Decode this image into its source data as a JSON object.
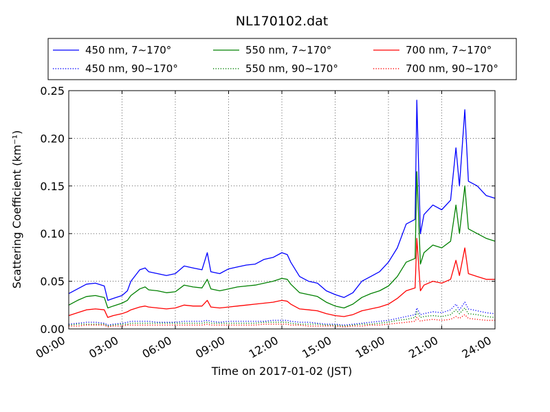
{
  "chart_data": {
    "type": "line",
    "title": "NL170102.dat",
    "xlabel": "Time on 2017-01-02 (JST)",
    "ylabel": "Scattering Coefficient (km⁻¹)",
    "xlim": [
      0,
      24
    ],
    "ylim": [
      0,
      0.25
    ],
    "x_ticks": [
      0,
      3,
      6,
      9,
      12,
      15,
      18,
      21,
      24
    ],
    "x_tick_labels": [
      "00:00",
      "03:00",
      "06:00",
      "09:00",
      "12:00",
      "15:00",
      "18:00",
      "21:00",
      "24:00"
    ],
    "y_ticks": [
      0,
      0.05,
      0.1,
      0.15,
      0.2,
      0.25
    ],
    "y_tick_labels": [
      "0.00",
      "0.05",
      "0.10",
      "0.15",
      "0.20",
      "0.25"
    ],
    "grid": true,
    "legend_position": "top",
    "x": [
      0,
      0.5,
      1.0,
      1.5,
      2.0,
      2.2,
      2.5,
      3.0,
      3.3,
      3.5,
      4.0,
      4.3,
      4.5,
      5.0,
      5.5,
      6.0,
      6.5,
      7.0,
      7.5,
      7.8,
      8.0,
      8.5,
      9.0,
      9.5,
      10.0,
      10.5,
      11.0,
      11.5,
      12.0,
      12.3,
      12.5,
      13.0,
      13.5,
      14.0,
      14.5,
      15.0,
      15.5,
      16.0,
      16.5,
      17.0,
      17.5,
      18.0,
      18.5,
      19.0,
      19.5,
      19.6,
      19.8,
      20.0,
      20.5,
      21.0,
      21.5,
      21.8,
      22.0,
      22.3,
      22.5,
      23.0,
      23.5,
      24.0
    ],
    "series": [
      {
        "name": "450 nm, 7∼170°",
        "color": "#0000ff",
        "style": "solid",
        "values": [
          0.037,
          0.042,
          0.047,
          0.048,
          0.045,
          0.03,
          0.032,
          0.035,
          0.04,
          0.05,
          0.062,
          0.064,
          0.06,
          0.058,
          0.056,
          0.058,
          0.066,
          0.064,
          0.062,
          0.08,
          0.06,
          0.058,
          0.063,
          0.065,
          0.067,
          0.068,
          0.073,
          0.075,
          0.08,
          0.078,
          0.07,
          0.055,
          0.05,
          0.048,
          0.04,
          0.036,
          0.033,
          0.038,
          0.05,
          0.055,
          0.06,
          0.07,
          0.085,
          0.11,
          0.115,
          0.24,
          0.1,
          0.12,
          0.13,
          0.125,
          0.135,
          0.19,
          0.15,
          0.23,
          0.155,
          0.15,
          0.14,
          0.137
        ]
      },
      {
        "name": "550 nm, 7∼170°",
        "color": "#008000",
        "style": "solid",
        "values": [
          0.025,
          0.03,
          0.034,
          0.035,
          0.033,
          0.022,
          0.024,
          0.027,
          0.03,
          0.035,
          0.042,
          0.044,
          0.041,
          0.04,
          0.038,
          0.039,
          0.046,
          0.044,
          0.043,
          0.052,
          0.042,
          0.04,
          0.042,
          0.044,
          0.045,
          0.046,
          0.048,
          0.05,
          0.053,
          0.052,
          0.047,
          0.038,
          0.036,
          0.034,
          0.028,
          0.024,
          0.022,
          0.026,
          0.033,
          0.037,
          0.04,
          0.045,
          0.055,
          0.07,
          0.074,
          0.165,
          0.068,
          0.08,
          0.088,
          0.085,
          0.092,
          0.13,
          0.1,
          0.15,
          0.105,
          0.1,
          0.095,
          0.092
        ]
      },
      {
        "name": "700 nm, 7∼170°",
        "color": "#ff0000",
        "style": "solid",
        "values": [
          0.014,
          0.017,
          0.02,
          0.021,
          0.02,
          0.012,
          0.014,
          0.016,
          0.018,
          0.02,
          0.023,
          0.024,
          0.023,
          0.022,
          0.021,
          0.022,
          0.025,
          0.024,
          0.024,
          0.03,
          0.023,
          0.022,
          0.023,
          0.024,
          0.025,
          0.026,
          0.027,
          0.028,
          0.03,
          0.029,
          0.026,
          0.021,
          0.02,
          0.019,
          0.016,
          0.014,
          0.013,
          0.015,
          0.019,
          0.021,
          0.023,
          0.026,
          0.032,
          0.04,
          0.043,
          0.095,
          0.04,
          0.046,
          0.05,
          0.048,
          0.052,
          0.072,
          0.056,
          0.085,
          0.058,
          0.055,
          0.052,
          0.052
        ]
      },
      {
        "name": "450 nm, 90∼170°",
        "color": "#0000ff",
        "style": "dotted",
        "values": [
          0.005,
          0.006,
          0.007,
          0.007,
          0.006,
          0.004,
          0.005,
          0.006,
          0.007,
          0.008,
          0.008,
          0.008,
          0.008,
          0.007,
          0.007,
          0.007,
          0.008,
          0.008,
          0.008,
          0.009,
          0.008,
          0.007,
          0.008,
          0.008,
          0.008,
          0.008,
          0.008,
          0.009,
          0.009,
          0.009,
          0.008,
          0.007,
          0.007,
          0.006,
          0.005,
          0.005,
          0.004,
          0.005,
          0.006,
          0.007,
          0.008,
          0.009,
          0.011,
          0.013,
          0.015,
          0.022,
          0.015,
          0.016,
          0.018,
          0.017,
          0.02,
          0.026,
          0.02,
          0.028,
          0.021,
          0.019,
          0.017,
          0.016
        ]
      },
      {
        "name": "550 nm, 90∼170°",
        "color": "#008000",
        "style": "dotted",
        "values": [
          0.004,
          0.005,
          0.005,
          0.005,
          0.005,
          0.003,
          0.004,
          0.005,
          0.005,
          0.006,
          0.006,
          0.006,
          0.006,
          0.006,
          0.006,
          0.006,
          0.006,
          0.006,
          0.006,
          0.007,
          0.006,
          0.006,
          0.006,
          0.006,
          0.006,
          0.006,
          0.007,
          0.007,
          0.007,
          0.007,
          0.006,
          0.005,
          0.005,
          0.005,
          0.004,
          0.004,
          0.003,
          0.004,
          0.005,
          0.005,
          0.006,
          0.007,
          0.009,
          0.01,
          0.012,
          0.018,
          0.012,
          0.013,
          0.014,
          0.013,
          0.015,
          0.02,
          0.016,
          0.022,
          0.016,
          0.015,
          0.013,
          0.012
        ]
      },
      {
        "name": "700 nm, 90∼170°",
        "color": "#ff0000",
        "style": "dotted",
        "values": [
          0.003,
          0.003,
          0.004,
          0.004,
          0.004,
          0.002,
          0.003,
          0.003,
          0.004,
          0.004,
          0.004,
          0.004,
          0.004,
          0.004,
          0.004,
          0.004,
          0.004,
          0.004,
          0.004,
          0.005,
          0.004,
          0.004,
          0.004,
          0.004,
          0.004,
          0.004,
          0.005,
          0.005,
          0.005,
          0.005,
          0.004,
          0.004,
          0.003,
          0.003,
          0.003,
          0.003,
          0.002,
          0.003,
          0.003,
          0.004,
          0.004,
          0.005,
          0.006,
          0.007,
          0.008,
          0.012,
          0.008,
          0.009,
          0.01,
          0.009,
          0.01,
          0.013,
          0.011,
          0.015,
          0.011,
          0.01,
          0.009,
          0.009
        ]
      }
    ]
  }
}
